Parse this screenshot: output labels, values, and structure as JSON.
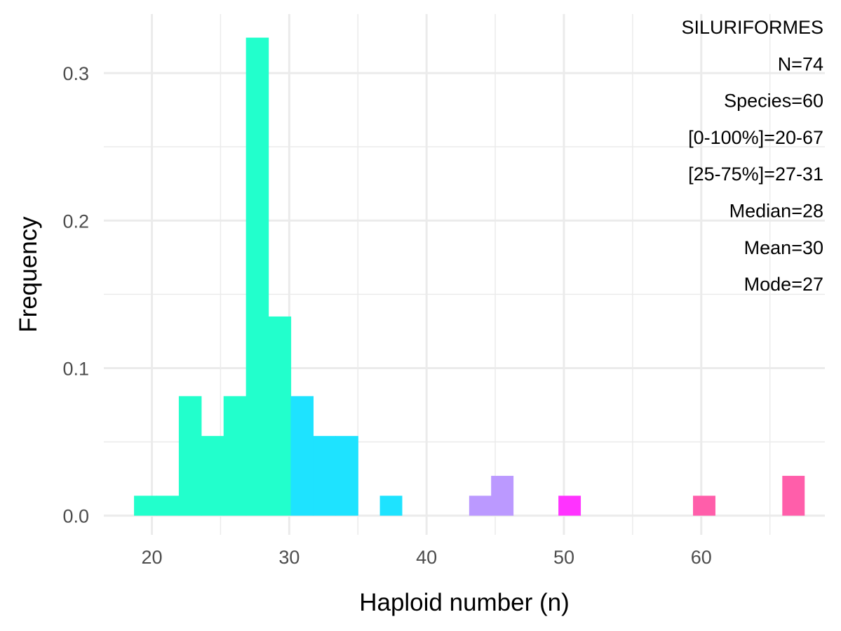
{
  "chart_data": {
    "type": "bar",
    "subtype": "histogram",
    "xlabel": "Haploid number (n)",
    "ylabel": "Frequency",
    "xlim": [
      16.5,
      69
    ],
    "ylim": [
      -0.013,
      0.34
    ],
    "x_ticks": [
      20,
      30,
      40,
      50,
      60
    ],
    "y_ticks": [
      0.0,
      0.1,
      0.2,
      0.3
    ],
    "y_tick_labels": [
      "0.0",
      "0.1",
      "0.2",
      "0.3"
    ],
    "grid": true,
    "bin_width": 1.63,
    "bins": [
      {
        "x0": 18.7,
        "x1": 20.33,
        "value": 0.0135,
        "color": "#22FFCC"
      },
      {
        "x0": 20.33,
        "x1": 21.96,
        "value": 0.0135,
        "color": "#22FFCC"
      },
      {
        "x0": 21.96,
        "x1": 23.59,
        "value": 0.081,
        "color": "#22FFCC"
      },
      {
        "x0": 23.59,
        "x1": 25.22,
        "value": 0.054,
        "color": "#22FFCC"
      },
      {
        "x0": 25.22,
        "x1": 26.85,
        "value": 0.081,
        "color": "#22FFCC"
      },
      {
        "x0": 26.85,
        "x1": 28.48,
        "value": 0.324,
        "color": "#22FFCC"
      },
      {
        "x0": 28.48,
        "x1": 30.11,
        "value": 0.135,
        "color": "#22FFCC"
      },
      {
        "x0": 30.11,
        "x1": 31.74,
        "value": 0.081,
        "color": "#1EE3FF"
      },
      {
        "x0": 31.74,
        "x1": 33.37,
        "value": 0.054,
        "color": "#1EE3FF"
      },
      {
        "x0": 33.37,
        "x1": 35.0,
        "value": 0.054,
        "color": "#1EE3FF"
      },
      {
        "x0": 36.6,
        "x1": 38.2,
        "value": 0.0135,
        "color": "#1EE3FF"
      },
      {
        "x0": 43.1,
        "x1": 44.7,
        "value": 0.0135,
        "color": "#BB99FF"
      },
      {
        "x0": 44.7,
        "x1": 46.3,
        "value": 0.027,
        "color": "#BB99FF"
      },
      {
        "x0": 49.6,
        "x1": 51.2,
        "value": 0.0135,
        "color": "#FF33FF"
      },
      {
        "x0": 59.4,
        "x1": 61.0,
        "value": 0.0135,
        "color": "#FF5EAA"
      },
      {
        "x0": 65.9,
        "x1": 67.5,
        "value": 0.027,
        "color": "#FF5EAA"
      }
    ],
    "annotations": [
      "SILURIFORMES",
      "N=74",
      "Species=60",
      "[0-100%]=20-67",
      "[25-75%]=27-31",
      "Median=28",
      "Mean=30",
      "Mode=27"
    ],
    "annotation_placement": "top-right"
  },
  "colors": {
    "grid": "#EBEBEB",
    "background": "#FFFFFF"
  }
}
